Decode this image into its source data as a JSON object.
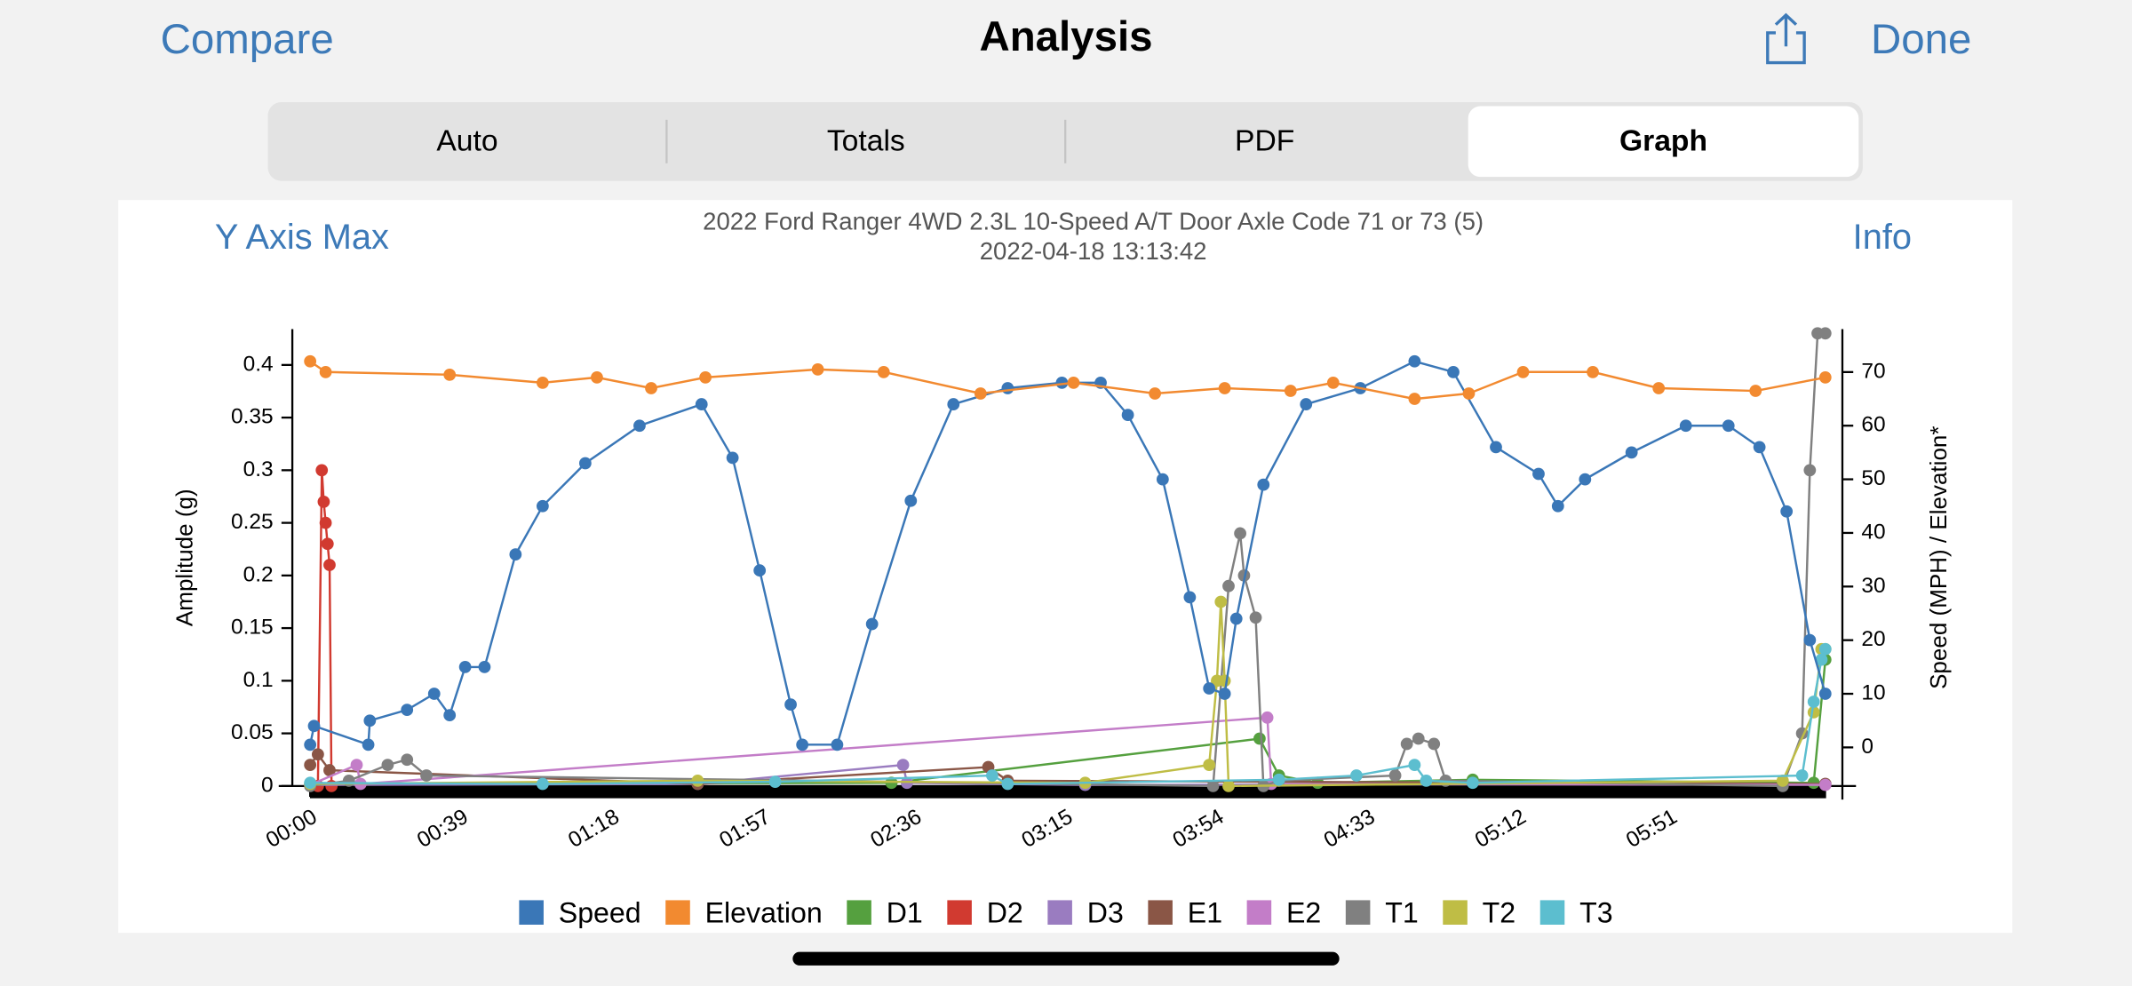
{
  "header": {
    "left": "Compare",
    "title": "Analysis",
    "right": "Done"
  },
  "tabs": [
    "Auto",
    "Totals",
    "PDF",
    "Graph"
  ],
  "selected_tab": 3,
  "panel": {
    "left": "Y Axis Max",
    "right": "Info"
  },
  "chart_data": {
    "type": "line",
    "title": "2022 Ford Ranger 4WD 2.3L 10-Speed A/T Door Axle Code 71 or 73 (5)",
    "subtitle": "2022-04-18 13:13:42",
    "y_label": "Amplitude (g)",
    "y2_label": "Speed (MPH) / Elevation*",
    "xlim": [
      -4.6,
      395.4
    ],
    "xticks": [
      {
        "value": 0,
        "label": "00:00"
      },
      {
        "value": 39,
        "label": "00:39"
      },
      {
        "value": 78,
        "label": "01:18"
      },
      {
        "value": 117,
        "label": "01:57"
      },
      {
        "value": 156,
        "label": "02:36"
      },
      {
        "value": 195,
        "label": "03:15"
      },
      {
        "value": 234,
        "label": "03:54"
      },
      {
        "value": 273,
        "label": "04:33"
      },
      {
        "value": 312,
        "label": "05:12"
      },
      {
        "value": 351,
        "label": "05:51"
      }
    ],
    "ylim": [
      0,
      0.434
    ],
    "yticks": [
      0,
      0.05,
      0.1,
      0.15,
      0.2,
      0.25,
      0.3,
      0.35,
      0.4
    ],
    "y2lim": [
      -7.2,
      78
    ],
    "y2ticks": [
      0,
      10,
      20,
      30,
      40,
      50,
      60,
      70
    ],
    "series": [
      {
        "name": "Speed",
        "color": "#3a77b7",
        "axis": "y2",
        "x": [
          0,
          1,
          15,
          15.4,
          25,
          32,
          36,
          40,
          45,
          53,
          60,
          71,
          85,
          101,
          109,
          116,
          124,
          127,
          136,
          145,
          155,
          166,
          180,
          194,
          204,
          211,
          220,
          227,
          232,
          236,
          239,
          246,
          257,
          271,
          285,
          295,
          306,
          317,
          322,
          329,
          341,
          355,
          366,
          374,
          381,
          387,
          391
        ],
        "values": [
          0.5,
          4,
          0.5,
          5,
          7,
          10,
          6,
          15,
          15,
          36,
          45,
          53,
          60,
          64,
          54,
          33,
          8,
          0.5,
          0.5,
          23,
          46,
          64,
          67,
          68,
          68,
          62,
          50,
          28,
          11,
          10,
          24,
          49,
          64,
          67,
          72,
          70,
          56,
          51,
          45,
          50,
          55,
          60,
          60,
          56,
          44,
          20,
          10
        ]
      },
      {
        "name": "Elevation",
        "color": "#f28a30",
        "axis": "y2",
        "x": [
          0,
          4,
          36,
          60,
          74,
          88,
          102,
          131,
          148,
          173,
          197,
          218,
          236,
          253,
          264,
          285,
          299,
          313,
          331,
          348,
          373,
          391
        ],
        "values": [
          72,
          70,
          69.5,
          68,
          69,
          67,
          69,
          70.5,
          70,
          66,
          68,
          66,
          67,
          66.5,
          68,
          65,
          66,
          70,
          70,
          67,
          66.5,
          69
        ]
      },
      {
        "name": "D1",
        "color": "#55a03f",
        "x": [
          0,
          150,
          245,
          250,
          260,
          300,
          388,
          391
        ],
        "values": [
          0.002,
          0.003,
          0.045,
          0.01,
          0.003,
          0.006,
          0.003,
          0.12
        ]
      },
      {
        "name": "D2",
        "color": "#d13a30",
        "x": [
          2,
          3,
          3.5,
          4,
          4.5,
          5,
          5.5
        ],
        "values": [
          0,
          0.3,
          0.27,
          0.25,
          0.23,
          0.21,
          0
        ]
      },
      {
        "name": "D3",
        "color": "#9a7cc0",
        "x": [
          0,
          100,
          153,
          154,
          200,
          391
        ],
        "values": [
          0.001,
          0.002,
          0.02,
          0.003,
          0.001,
          0.002
        ]
      },
      {
        "name": "E1",
        "color": "#8a5646",
        "x": [
          0,
          2,
          5,
          100,
          175,
          180,
          391
        ],
        "values": [
          0.02,
          0.03,
          0.015,
          0.002,
          0.018,
          0.005,
          0.002
        ]
      },
      {
        "name": "E2",
        "color": "#c37dc8",
        "x": [
          0,
          12,
          13,
          247,
          248,
          391
        ],
        "values": [
          0.001,
          0.02,
          0.002,
          0.065,
          0.002,
          0.001
        ]
      },
      {
        "name": "T1",
        "color": "#808080",
        "x": [
          0,
          10,
          20,
          25,
          30,
          233,
          237,
          240,
          241,
          244,
          246,
          250,
          280,
          283,
          286,
          290,
          293,
          380,
          385,
          387,
          389,
          391
        ],
        "values": [
          0,
          0.005,
          0.02,
          0.025,
          0.01,
          0,
          0.19,
          0.24,
          0.2,
          0.16,
          0,
          0.005,
          0.01,
          0.04,
          0.045,
          0.04,
          0.005,
          0,
          0.05,
          0.3,
          0.43,
          0.43
        ]
      },
      {
        "name": "T2",
        "color": "#bfbd45",
        "x": [
          0,
          100,
          200,
          232,
          234,
          235,
          236,
          237,
          380,
          388,
          390,
          391
        ],
        "values": [
          0.002,
          0.005,
          0.003,
          0.02,
          0.1,
          0.175,
          0.1,
          0,
          0.005,
          0.07,
          0.13,
          0.13
        ]
      },
      {
        "name": "T3",
        "color": "#5cbecf",
        "x": [
          0,
          60,
          120,
          176,
          180,
          250,
          270,
          285,
          288,
          300,
          385,
          388,
          390,
          391
        ],
        "values": [
          0.003,
          0.002,
          0.004,
          0.01,
          0.002,
          0.006,
          0.01,
          0.02,
          0.005,
          0.003,
          0.01,
          0.08,
          0.12,
          0.13
        ]
      }
    ]
  }
}
